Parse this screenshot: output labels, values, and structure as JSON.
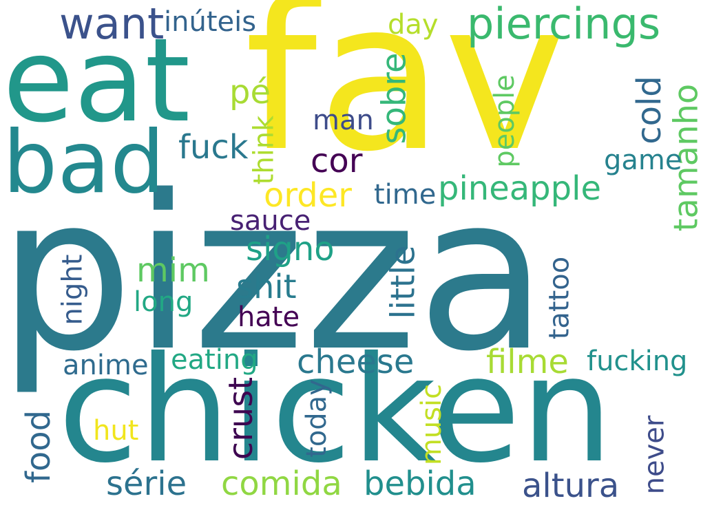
{
  "words": [
    {
      "text": "pizza",
      "color": "#2c7a8c",
      "rot": 0
    },
    {
      "text": "fav",
      "color": "#f4e61e",
      "rot": 0
    },
    {
      "text": "chicken",
      "color": "#24868e",
      "rot": 0
    },
    {
      "text": "eat",
      "color": "#21978a",
      "rot": 0
    },
    {
      "text": "bad",
      "color": "#23888e",
      "rot": 0
    },
    {
      "text": "piercings",
      "color": "#3ab96e",
      "rot": 0
    },
    {
      "text": "want",
      "color": "#3b528b",
      "rot": 0
    },
    {
      "text": "inúteis",
      "color": "#33638d",
      "rot": 0
    },
    {
      "text": "day",
      "color": "#b5de2b",
      "rot": 0
    },
    {
      "text": "sobre",
      "color": "#35b779",
      "rot": -90
    },
    {
      "text": "pé",
      "color": "#a8db34",
      "rot": 0
    },
    {
      "text": "man",
      "color": "#3e4c8a",
      "rot": 0
    },
    {
      "text": "fuck",
      "color": "#2a788e",
      "rot": 0
    },
    {
      "text": "think",
      "color": "#addc30",
      "rot": -90
    },
    {
      "text": "cor",
      "color": "#440154",
      "rot": 0
    },
    {
      "text": "people",
      "color": "#5ec962",
      "rot": -90
    },
    {
      "text": "cold",
      "color": "#31688e",
      "rot": -90
    },
    {
      "text": "tamanho",
      "color": "#5ec962",
      "rot": -90
    },
    {
      "text": "game",
      "color": "#26828e",
      "rot": 0
    },
    {
      "text": "order",
      "color": "#fde725",
      "rot": 0
    },
    {
      "text": "time",
      "color": "#31688e",
      "rot": 0
    },
    {
      "text": "pineapple",
      "color": "#35b779",
      "rot": 0
    },
    {
      "text": "sauce",
      "color": "#482173",
      "rot": 0
    },
    {
      "text": "signo",
      "color": "#1fa187",
      "rot": 0
    },
    {
      "text": "mim",
      "color": "#5ec962",
      "rot": 0
    },
    {
      "text": "shit",
      "color": "#287c8e",
      "rot": 0
    },
    {
      "text": "little",
      "color": "#2c728e",
      "rot": -90
    },
    {
      "text": "night",
      "color": "#365c8d",
      "rot": -90
    },
    {
      "text": "long",
      "color": "#22a884",
      "rot": 0
    },
    {
      "text": "hate",
      "color": "#440154",
      "rot": 0
    },
    {
      "text": "tattoo",
      "color": "#33638d",
      "rot": -90
    },
    {
      "text": "anime",
      "color": "#2f6b8e",
      "rot": 0
    },
    {
      "text": "eating",
      "color": "#22a884",
      "rot": 0
    },
    {
      "text": "cheese",
      "color": "#2a788e",
      "rot": 0
    },
    {
      "text": "filme",
      "color": "#a8db34",
      "rot": 0
    },
    {
      "text": "fucking",
      "color": "#21918c",
      "rot": 0
    },
    {
      "text": "crust",
      "color": "#3e0751",
      "rot": -90
    },
    {
      "text": "today",
      "color": "#31688e",
      "rot": -90
    },
    {
      "text": "music",
      "color": "#c2df23",
      "rot": -90
    },
    {
      "text": "hut",
      "color": "#f1e51d",
      "rot": 0
    },
    {
      "text": "food",
      "color": "#31688e",
      "rot": -90
    },
    {
      "text": "never",
      "color": "#3e4c8a",
      "rot": -90
    },
    {
      "text": "série",
      "color": "#2c728e",
      "rot": 0
    },
    {
      "text": "comida",
      "color": "#90d743",
      "rot": 0
    },
    {
      "text": "bebida",
      "color": "#218f8d",
      "rot": 0
    },
    {
      "text": "altura",
      "color": "#3b528b",
      "rot": 0
    }
  ]
}
